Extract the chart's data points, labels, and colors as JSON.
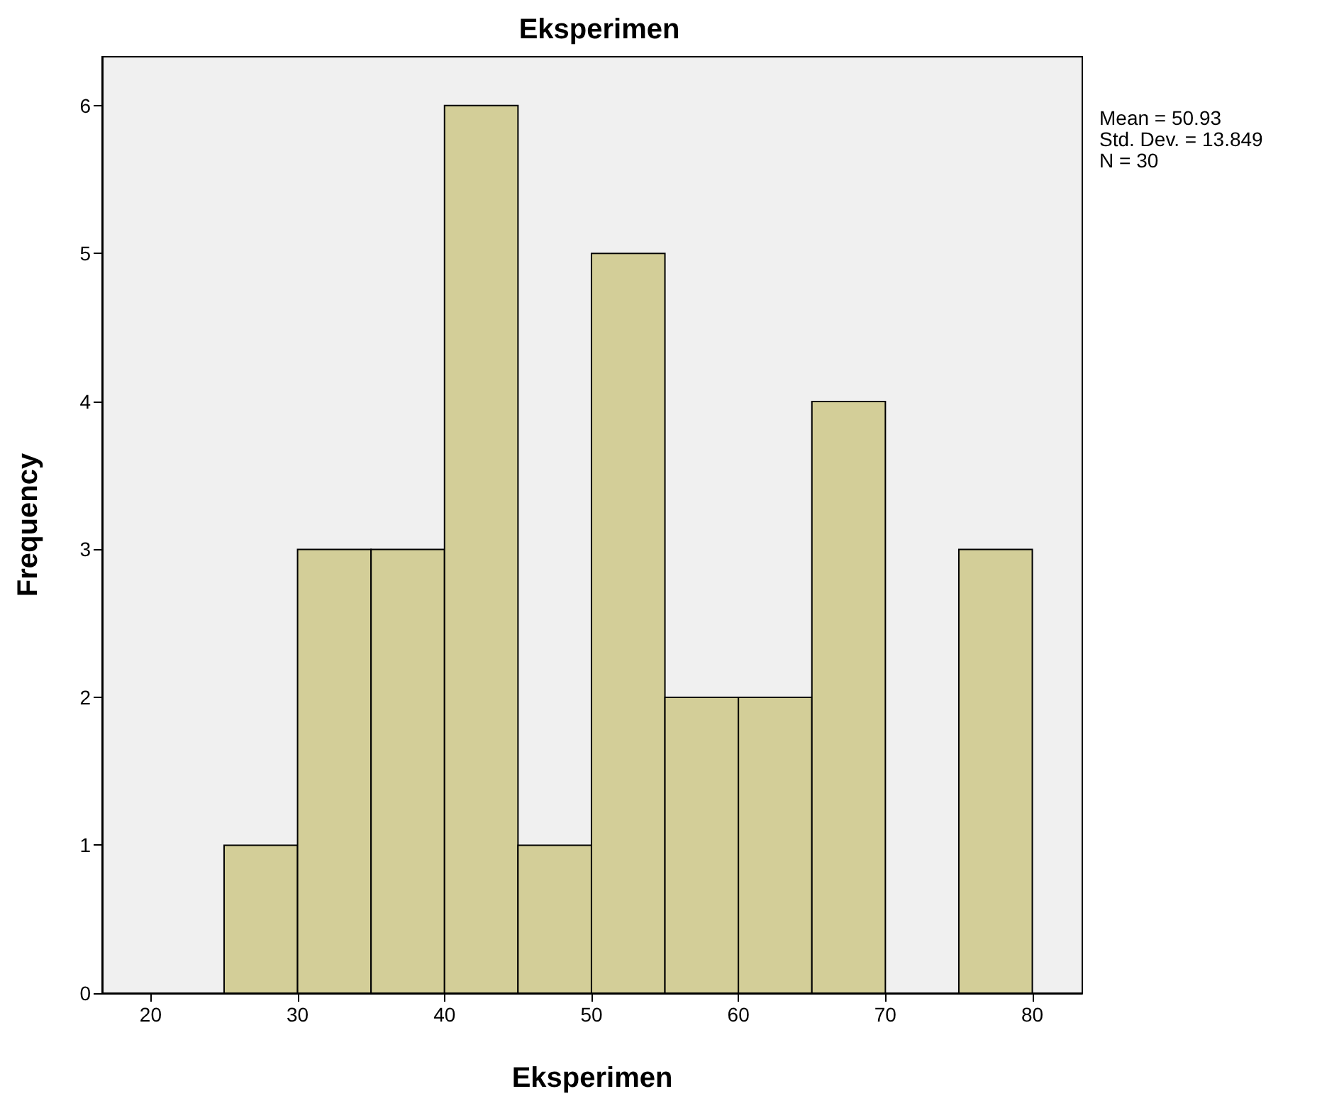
{
  "chart_data": {
    "type": "histogram",
    "title": "Eksperimen",
    "xlabel": "Eksperimen",
    "ylabel": "Frequency",
    "bins": [
      25,
      30,
      35,
      40,
      45,
      50,
      55,
      60,
      65,
      70,
      75,
      80
    ],
    "values": [
      1,
      3,
      3,
      6,
      1,
      5,
      2,
      2,
      4,
      0,
      3
    ],
    "color": "#d3ce98",
    "xlim": [
      16.7,
      83.4
    ],
    "xticks": [
      20,
      30,
      40,
      50,
      60,
      70,
      80
    ],
    "ylim": [
      0,
      6.33
    ],
    "yticks": [
      0,
      1,
      2,
      3,
      4,
      5,
      6
    ],
    "grid": false,
    "annotations": [
      "Mean = 50.93",
      "Std. Dev. = 13.849",
      "N = 30"
    ]
  }
}
